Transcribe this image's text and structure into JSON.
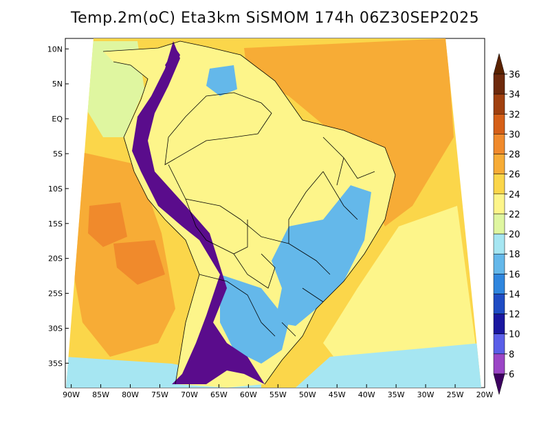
{
  "title": "Temp.2m(oC) Eta3km SiSMOM 174h 06Z30SEP2025",
  "map": {
    "lon_range": [
      -91,
      -20
    ],
    "lat_range": [
      -38.5,
      11.5
    ],
    "lon_ticks": [
      {
        "lon": -90,
        "label": "90W"
      },
      {
        "lon": -85,
        "label": "85W"
      },
      {
        "lon": -80,
        "label": "80W"
      },
      {
        "lon": -75,
        "label": "75W"
      },
      {
        "lon": -70,
        "label": "70W"
      },
      {
        "lon": -65,
        "label": "65W"
      },
      {
        "lon": -60,
        "label": "60W"
      },
      {
        "lon": -55,
        "label": "55W"
      },
      {
        "lon": -50,
        "label": "50W"
      },
      {
        "lon": -45,
        "label": "45W"
      },
      {
        "lon": -40,
        "label": "40W"
      },
      {
        "lon": -35,
        "label": "35W"
      },
      {
        "lon": -30,
        "label": "30W"
      },
      {
        "lon": -25,
        "label": "25W"
      },
      {
        "lon": -20,
        "label": "20W"
      }
    ],
    "lat_ticks": [
      {
        "lat": 10,
        "label": "10N"
      },
      {
        "lat": 5,
        "label": "5N"
      },
      {
        "lat": 0,
        "label": "EQ"
      },
      {
        "lat": -5,
        "label": "5S"
      },
      {
        "lat": -10,
        "label": "10S"
      },
      {
        "lat": -15,
        "label": "15S"
      },
      {
        "lat": -20,
        "label": "20S"
      },
      {
        "lat": -25,
        "label": "25S"
      },
      {
        "lat": -30,
        "label": "30S"
      },
      {
        "lat": -35,
        "label": "35S"
      }
    ]
  },
  "colorbar": {
    "levels": [
      {
        "label": "36",
        "color": "#6e2a0c"
      },
      {
        "label": "34",
        "color": "#a0400f"
      },
      {
        "label": "32",
        "color": "#d55f17"
      },
      {
        "label": "30",
        "color": "#f08a2c"
      },
      {
        "label": "28",
        "color": "#f7ac36"
      },
      {
        "label": "26",
        "color": "#fbd64a"
      },
      {
        "label": "24",
        "color": "#fdf58a"
      },
      {
        "label": "22",
        "color": "#dff6a0"
      },
      {
        "label": "20",
        "color": "#a6e6f2"
      },
      {
        "label": "18",
        "color": "#64b8ea"
      },
      {
        "label": "16",
        "color": "#2f86de"
      },
      {
        "label": "14",
        "color": "#1f4cc4"
      },
      {
        "label": "12",
        "color": "#1a17a0"
      },
      {
        "label": "10",
        "color": "#5a5ee8"
      },
      {
        "label": "8",
        "color": "#9b45c6"
      },
      {
        "label": "6",
        "color": "#5a0c8c"
      }
    ],
    "top_color": "#5a2200",
    "bottom_color": "#3c0060"
  },
  "colors": {
    "ocean_warm": "#fbd64a",
    "ocean_hot": "#f7ac36",
    "ocean_very_hot": "#f08a2c",
    "ocean_mild": "#fdf58a",
    "ocean_cool": "#dff6a0",
    "ocean_cold": "#a6e6f2",
    "land_base": "#fdf58a",
    "highland_blue": "#64b8ea",
    "andes": "#5a0c8c",
    "border": "#000000"
  }
}
